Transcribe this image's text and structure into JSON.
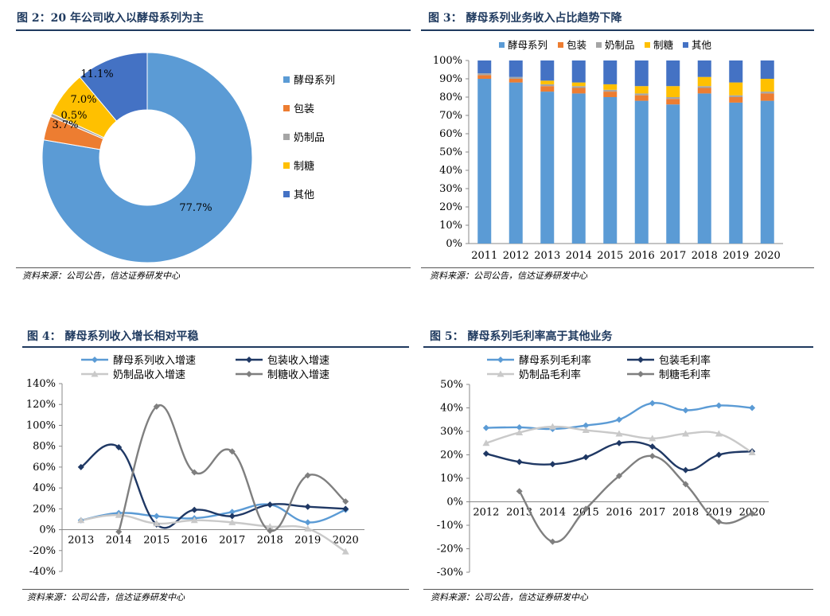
{
  "colors": {
    "blue": "#5b9bd5",
    "orange": "#ed7d31",
    "gray": "#a5a5a5",
    "gold": "#ffc000",
    "darkblue": "#4472c4",
    "navy": "#1f3864",
    "darkgray": "#7f7f7f",
    "lightgray": "#c9c9c9"
  },
  "source_text": "资料来源：公司公告，信达证券研发中心",
  "panels": [
    {
      "title": "图 2：20 年公司收入以酵母系列为主"
    },
    {
      "title": "图 3：  酵母系列业务收入占比趋势下降"
    },
    {
      "title": "图 4：  酵母系列收入增长相对平稳"
    },
    {
      "title": "图 5：  酵母系列毛利率高于其他业务"
    }
  ],
  "chart_data": [
    {
      "type": "pie",
      "categories": [
        "酵母系列",
        "包装",
        "奶制品",
        "制糖",
        "其他"
      ],
      "values": [
        77.7,
        3.7,
        0.5,
        7.0,
        11.1
      ],
      "labels": [
        "77.7%",
        "3.7%",
        "0.5%",
        "7.0%",
        "11.1%"
      ],
      "colors": [
        "#5b9bd5",
        "#ed7d31",
        "#a5a5a5",
        "#ffc000",
        "#4472c4"
      ],
      "legend": "right"
    },
    {
      "type": "bar",
      "stacked": true,
      "categories": [
        "2011",
        "2012",
        "2013",
        "2014",
        "2015",
        "2016",
        "2017",
        "2018",
        "2019",
        "2020"
      ],
      "series": [
        {
          "name": "酵母系列",
          "color": "#5b9bd5",
          "values": [
            90,
            88,
            83,
            82,
            80,
            78,
            76,
            82,
            77,
            78
          ]
        },
        {
          "name": "包装",
          "color": "#ed7d31",
          "values": [
            2,
            2,
            3,
            3,
            3,
            3,
            3,
            3,
            3,
            4
          ]
        },
        {
          "name": "奶制品",
          "color": "#a5a5a5",
          "values": [
            1,
            1,
            1,
            1,
            1,
            1,
            1,
            1,
            1,
            1
          ]
        },
        {
          "name": "制糖",
          "color": "#ffc000",
          "values": [
            0,
            0,
            2,
            2,
            3,
            4,
            6,
            5,
            7,
            7
          ]
        },
        {
          "name": "其他",
          "color": "#4472c4",
          "values": [
            7,
            9,
            11,
            12,
            13,
            14,
            14,
            9,
            12,
            10
          ]
        }
      ],
      "ylim": [
        0,
        100
      ],
      "yticks": [
        "0%",
        "10%",
        "20%",
        "30%",
        "40%",
        "50%",
        "60%",
        "70%",
        "80%",
        "90%",
        "100%"
      ],
      "legend": "top"
    },
    {
      "type": "line",
      "categories": [
        "2013",
        "2014",
        "2015",
        "2016",
        "2017",
        "2018",
        "2019",
        "2020"
      ],
      "series": [
        {
          "name": "酵母系列收入增速",
          "color": "#5b9bd5",
          "marker": "diamond",
          "values": [
            9,
            16,
            13,
            11,
            17,
            24,
            7,
            19
          ]
        },
        {
          "name": "包装收入增速",
          "color": "#1f3864",
          "marker": "diamond",
          "values": [
            60,
            79,
            5,
            19,
            13,
            24,
            22,
            20
          ]
        },
        {
          "name": "奶制品收入增速",
          "color": "#c9c9c9",
          "marker": "triangle",
          "values": [
            9,
            14,
            6,
            9,
            7,
            3,
            1,
            -21
          ]
        },
        {
          "name": "制糖收入增速",
          "color": "#7f7f7f",
          "marker": "diamond",
          "values": [
            null,
            -2,
            118,
            55,
            75,
            -1,
            52,
            27
          ]
        }
      ],
      "ylim": [
        -40,
        140
      ],
      "yticks": [
        "-40%",
        "-20%",
        "0%",
        "20%",
        "40%",
        "60%",
        "80%",
        "100%",
        "120%",
        "140%"
      ],
      "legend": "top"
    },
    {
      "type": "line",
      "categories": [
        "2012",
        "2013",
        "2014",
        "2015",
        "2016",
        "2017",
        "2018",
        "2019",
        "2020"
      ],
      "series": [
        {
          "name": "酵母系列毛利率",
          "color": "#5b9bd5",
          "marker": "diamond",
          "values": [
            31.5,
            31.7,
            31,
            32.5,
            35,
            42,
            39,
            41,
            40
          ]
        },
        {
          "name": "包装毛利率",
          "color": "#1f3864",
          "marker": "diamond",
          "values": [
            20.5,
            17,
            16,
            19,
            25,
            23.5,
            13.5,
            20,
            21.5
          ]
        },
        {
          "name": "奶制品毛利率",
          "color": "#c9c9c9",
          "marker": "triangle",
          "values": [
            25,
            29.5,
            32,
            30.5,
            29,
            27,
            29,
            29,
            21
          ]
        },
        {
          "name": "制糖毛利率",
          "color": "#7f7f7f",
          "marker": "diamond",
          "values": [
            null,
            4.5,
            -17,
            -3,
            11,
            19.5,
            7.5,
            -8.5,
            -5
          ]
        }
      ],
      "ylim": [
        -30,
        50
      ],
      "yticks": [
        "-30%",
        "-20%",
        "-10%",
        "0%",
        "10%",
        "20%",
        "30%",
        "40%",
        "50%"
      ],
      "legend": "top"
    }
  ]
}
